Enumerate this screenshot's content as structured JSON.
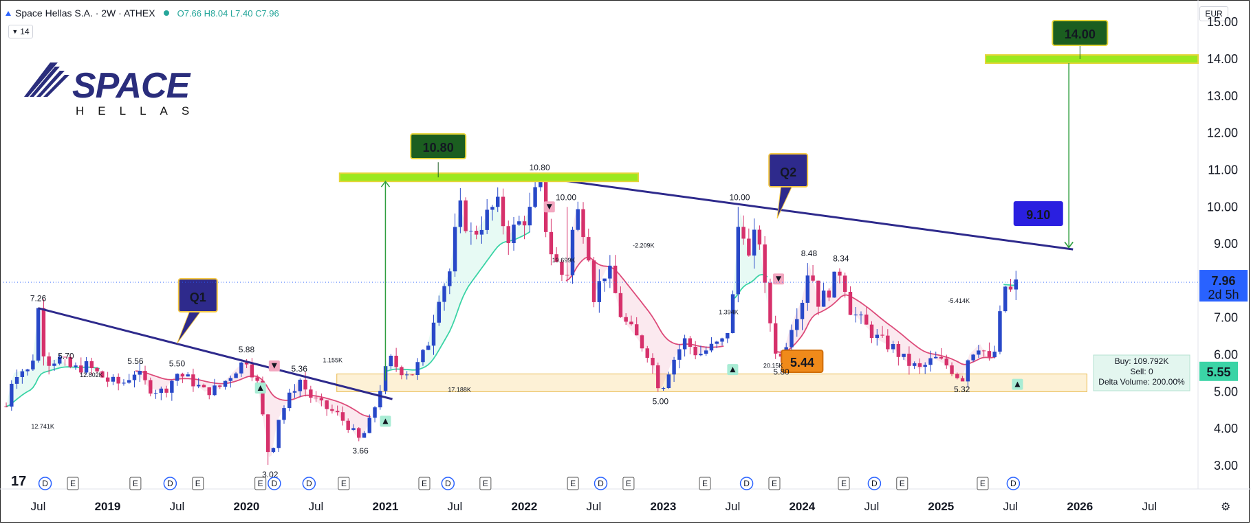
{
  "header": {
    "symbol": "Space Hellas S.A. · 2W · ATHEX",
    "ohlc": "O7.66 H8.04 L7.40 C7.96",
    "interval_badge": "14",
    "currency": "EUR"
  },
  "logo": {
    "word": "SPACE",
    "sub": "HELLAS"
  },
  "colors": {
    "up": "#2848c8",
    "down": "#d6316b",
    "trend_line": "#2e2a8c",
    "target_bar": "#9be81f",
    "target_label_bg": "#1b5e20",
    "q_label_bg": "#2e2a8c",
    "q_label_text": "#f5c842",
    "price_label_bg": "#2962ff",
    "support_zone": "#fdf1d6",
    "arrow": "#2e9e3e",
    "vwap_green": "#3bd4a6",
    "vwap_red": "#dd4b7a"
  },
  "chart_data": {
    "type": "candlestick",
    "title": "Space Hellas S.A. · 2W · ATHEX",
    "ylim": [
      2.4,
      15.2
    ],
    "yticks": [
      3,
      4,
      5,
      6,
      7,
      8,
      9,
      10,
      11,
      12,
      13,
      14,
      15
    ],
    "ytick_labels": [
      "3.00",
      "4.00",
      "5.00",
      "6.00",
      "7.00",
      "8.00",
      "9.00",
      "10.00",
      "11.00",
      "12.00",
      "13.00",
      "14.00",
      "15.00"
    ],
    "xlim": [
      2018.25,
      2026.85
    ],
    "xticks": [
      {
        "x": 2018.5,
        "label": "Jul"
      },
      {
        "x": 2019.0,
        "label": "2019"
      },
      {
        "x": 2019.5,
        "label": "Jul"
      },
      {
        "x": 2020.0,
        "label": "2020"
      },
      {
        "x": 2020.5,
        "label": "Jul"
      },
      {
        "x": 2021.0,
        "label": "2021"
      },
      {
        "x": 2021.5,
        "label": "Jul"
      },
      {
        "x": 2022.0,
        "label": "2022"
      },
      {
        "x": 2022.5,
        "label": "Jul"
      },
      {
        "x": 2023.0,
        "label": "2023"
      },
      {
        "x": 2023.5,
        "label": "Jul"
      },
      {
        "x": 2024.0,
        "label": "2024"
      },
      {
        "x": 2024.5,
        "label": "Jul"
      },
      {
        "x": 2025.0,
        "label": "2025"
      },
      {
        "x": 2025.5,
        "label": "Jul"
      },
      {
        "x": 2026.0,
        "label": "2026"
      },
      {
        "x": 2026.5,
        "label": "Jul"
      }
    ],
    "price_path": [
      [
        2018.27,
        4.6
      ],
      [
        2018.32,
        5.5
      ],
      [
        2018.4,
        5.6
      ],
      [
        2018.45,
        5.5
      ],
      [
        2018.5,
        7.26
      ],
      [
        2018.55,
        5.8
      ],
      [
        2018.65,
        5.9
      ],
      [
        2018.75,
        5.6
      ],
      [
        2018.85,
        5.7
      ],
      [
        2019.0,
        5.3
      ],
      [
        2019.1,
        5.2
      ],
      [
        2019.2,
        5.56
      ],
      [
        2019.3,
        5.1
      ],
      [
        2019.4,
        5.0
      ],
      [
        2019.5,
        5.5
      ],
      [
        2019.6,
        5.3
      ],
      [
        2019.7,
        5.0
      ],
      [
        2019.8,
        5.1
      ],
      [
        2019.92,
        5.6
      ],
      [
        2020.0,
        5.88
      ],
      [
        2020.08,
        5.2
      ],
      [
        2020.13,
        4.0
      ],
      [
        2020.17,
        3.02
      ],
      [
        2020.22,
        4.2
      ],
      [
        2020.3,
        4.8
      ],
      [
        2020.38,
        5.36
      ],
      [
        2020.45,
        4.9
      ],
      [
        2020.55,
        4.6
      ],
      [
        2020.65,
        4.4
      ],
      [
        2020.75,
        4.0
      ],
      [
        2020.82,
        3.66
      ],
      [
        2020.9,
        4.3
      ],
      [
        2020.97,
        5.2
      ],
      [
        2021.03,
        5.9
      ],
      [
        2021.1,
        5.6
      ],
      [
        2021.2,
        5.5
      ],
      [
        2021.3,
        6.2
      ],
      [
        2021.38,
        7.6
      ],
      [
        2021.46,
        8.2
      ],
      [
        2021.53,
        10.0
      ],
      [
        2021.62,
        9.2
      ],
      [
        2021.7,
        9.6
      ],
      [
        2021.8,
        10.1
      ],
      [
        2021.88,
        9.2
      ],
      [
        2021.95,
        9.5
      ],
      [
        2022.05,
        9.9
      ],
      [
        2022.11,
        10.8
      ],
      [
        2022.17,
        9.0
      ],
      [
        2022.25,
        8.3
      ],
      [
        2022.3,
        8.0
      ],
      [
        2022.37,
        10.0
      ],
      [
        2022.45,
        9.2
      ],
      [
        2022.5,
        7.6
      ],
      [
        2022.6,
        8.4
      ],
      [
        2022.7,
        7.0
      ],
      [
        2022.8,
        6.5
      ],
      [
        2022.9,
        6.0
      ],
      [
        2022.98,
        5.0
      ],
      [
        2023.05,
        5.7
      ],
      [
        2023.15,
        6.4
      ],
      [
        2023.25,
        6.0
      ],
      [
        2023.35,
        6.2
      ],
      [
        2023.45,
        6.4
      ],
      [
        2023.5,
        7.5
      ],
      [
        2023.55,
        10.0
      ],
      [
        2023.62,
        8.5
      ],
      [
        2023.68,
        9.6
      ],
      [
        2023.73,
        7.8
      ],
      [
        2023.8,
        6.2
      ],
      [
        2023.85,
        5.9
      ],
      [
        2023.92,
        6.8
      ],
      [
        2024.0,
        7.5
      ],
      [
        2024.05,
        8.48
      ],
      [
        2024.12,
        7.4
      ],
      [
        2024.2,
        7.8
      ],
      [
        2024.28,
        8.34
      ],
      [
        2024.35,
        7.2
      ],
      [
        2024.45,
        6.8
      ],
      [
        2024.55,
        6.4
      ],
      [
        2024.65,
        6.2
      ],
      [
        2024.75,
        5.8
      ],
      [
        2024.85,
        5.6
      ],
      [
        2024.95,
        5.9
      ],
      [
        2025.05,
        5.7
      ],
      [
        2025.15,
        5.32
      ],
      [
        2025.2,
        6.0
      ],
      [
        2025.28,
        6.3
      ],
      [
        2025.35,
        5.8
      ],
      [
        2025.4,
        6.2
      ],
      [
        2025.45,
        7.9
      ],
      [
        2025.5,
        7.7
      ],
      [
        2025.55,
        7.96
      ]
    ],
    "resistance_line_1": [
      [
        2018.5,
        7.26
      ],
      [
        2021.05,
        4.8
      ]
    ],
    "resistance_line_2": [
      [
        2022.11,
        10.8
      ],
      [
        2025.95,
        8.85
      ]
    ],
    "support_zone": [
      5.0,
      5.48
    ],
    "target_1": 10.8,
    "target_2": 14.0,
    "last_price": 7.96,
    "labels": {
      "q1": "Q1",
      "q2": "Q2",
      "t1": "10.80",
      "t2": "14.00",
      "current": "9.10",
      "support": "5.44",
      "last_price": "7.96",
      "countdown": "2d 5h",
      "vwap_price": "5.55"
    },
    "annotations": [
      {
        "x": 2018.5,
        "y": 7.26,
        "text": "7.26",
        "pos": "above"
      },
      {
        "x": 2018.7,
        "y": 5.7,
        "text": "5.70",
        "pos": "above"
      },
      {
        "x": 2019.2,
        "y": 5.56,
        "text": "5.56",
        "pos": "above"
      },
      {
        "x": 2019.5,
        "y": 5.5,
        "text": "5.50",
        "pos": "above"
      },
      {
        "x": 2020.0,
        "y": 5.88,
        "text": "5.88",
        "pos": "above"
      },
      {
        "x": 2020.38,
        "y": 5.36,
        "text": "5.36",
        "pos": "above"
      },
      {
        "x": 2020.17,
        "y": 3.02,
        "text": "3.02",
        "pos": "below"
      },
      {
        "x": 2020.82,
        "y": 3.66,
        "text": "3.66",
        "pos": "below"
      },
      {
        "x": 2022.11,
        "y": 10.8,
        "text": "10.80",
        "pos": "above"
      },
      {
        "x": 2022.3,
        "y": 10.0,
        "text": "10.00",
        "pos": "above"
      },
      {
        "x": 2022.98,
        "y": 5.0,
        "text": "5.00",
        "pos": "below"
      },
      {
        "x": 2023.55,
        "y": 10.0,
        "text": "10.00",
        "pos": "above"
      },
      {
        "x": 2023.85,
        "y": 5.8,
        "text": "5.80",
        "pos": "below"
      },
      {
        "x": 2024.05,
        "y": 8.48,
        "text": "8.48",
        "pos": "above"
      },
      {
        "x": 2024.28,
        "y": 8.34,
        "text": "8.34",
        "pos": "above"
      },
      {
        "x": 2025.15,
        "y": 5.32,
        "text": "5.32",
        "pos": "below"
      }
    ],
    "volume_notes": [
      {
        "x": 2018.45,
        "y": 4.0,
        "text": "12.741K"
      },
      {
        "x": 2018.8,
        "y": 5.4,
        "text": "12.802K"
      },
      {
        "x": 2020.55,
        "y": 5.8,
        "text": "1.155K"
      },
      {
        "x": 2021.45,
        "y": 5.0,
        "text": "17.188K"
      },
      {
        "x": 2022.2,
        "y": 8.5,
        "text": "19.699K"
      },
      {
        "x": 2022.78,
        "y": 8.9,
        "text": "-2.209K"
      },
      {
        "x": 2023.4,
        "y": 7.1,
        "text": "1.394K"
      },
      {
        "x": 2023.72,
        "y": 5.65,
        "text": "20.15K"
      },
      {
        "x": 2025.05,
        "y": 7.4,
        "text": "-5.414K"
      }
    ],
    "event_markers": [
      {
        "x": 2018.55,
        "kind": "D"
      },
      {
        "x": 2018.75,
        "kind": "E"
      },
      {
        "x": 2019.2,
        "kind": "E"
      },
      {
        "x": 2019.45,
        "kind": "D"
      },
      {
        "x": 2019.65,
        "kind": "E"
      },
      {
        "x": 2020.1,
        "kind": "E"
      },
      {
        "x": 2020.2,
        "kind": "D"
      },
      {
        "x": 2020.45,
        "kind": "D"
      },
      {
        "x": 2020.7,
        "kind": "E"
      },
      {
        "x": 2021.28,
        "kind": "E"
      },
      {
        "x": 2021.45,
        "kind": "D"
      },
      {
        "x": 2021.72,
        "kind": "E"
      },
      {
        "x": 2022.35,
        "kind": "E"
      },
      {
        "x": 2022.55,
        "kind": "D"
      },
      {
        "x": 2022.75,
        "kind": "E"
      },
      {
        "x": 2023.3,
        "kind": "E"
      },
      {
        "x": 2023.6,
        "kind": "D"
      },
      {
        "x": 2023.8,
        "kind": "E"
      },
      {
        "x": 2024.3,
        "kind": "E"
      },
      {
        "x": 2024.52,
        "kind": "D"
      },
      {
        "x": 2024.72,
        "kind": "E"
      },
      {
        "x": 2025.3,
        "kind": "E"
      },
      {
        "x": 2025.52,
        "kind": "D"
      }
    ],
    "info_box": {
      "buy": "Buy: 109.792K",
      "sell": "Sell: 0",
      "delta": "Delta Volume: 200.00%"
    }
  }
}
